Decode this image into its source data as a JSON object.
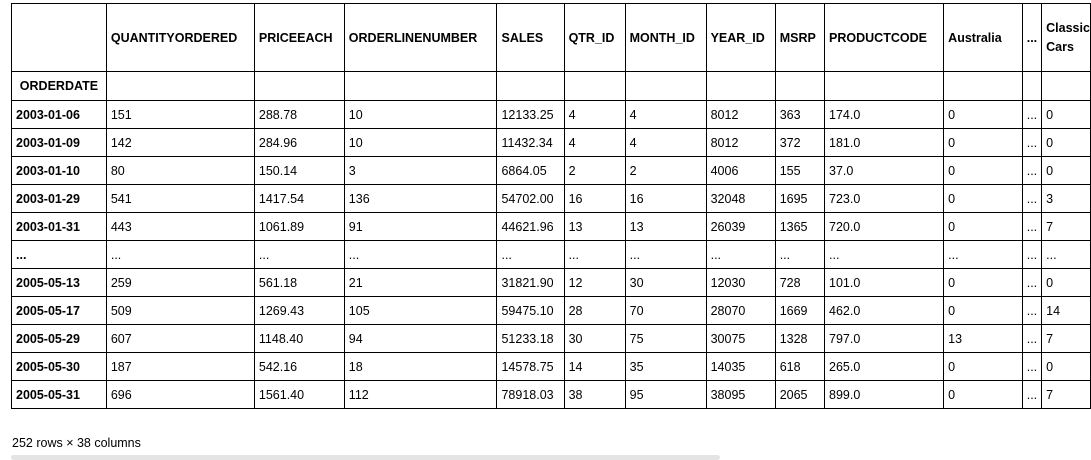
{
  "table": {
    "index_name": "ORDERDATE",
    "columns": [
      "QUANTITYORDERED",
      "PRICEEACH",
      "ORDERLINENUMBER",
      "SALES",
      "QTR_ID",
      "MONTH_ID",
      "YEAR_ID",
      "MSRP",
      "PRODUCTCODE",
      "Australia",
      "...",
      "Classic Cars"
    ],
    "rows": [
      {
        "index": "2003-01-06",
        "cells": [
          "151",
          "288.78",
          "10",
          "12133.25",
          "4",
          "4",
          "8012",
          "363",
          "174.0",
          "0",
          "...",
          "0"
        ]
      },
      {
        "index": "2003-01-09",
        "cells": [
          "142",
          "284.96",
          "10",
          "11432.34",
          "4",
          "4",
          "8012",
          "372",
          "181.0",
          "0",
          "...",
          "0"
        ]
      },
      {
        "index": "2003-01-10",
        "cells": [
          "80",
          "150.14",
          "3",
          "6864.05",
          "2",
          "2",
          "4006",
          "155",
          "37.0",
          "0",
          "...",
          "0"
        ]
      },
      {
        "index": "2003-01-29",
        "cells": [
          "541",
          "1417.54",
          "136",
          "54702.00",
          "16",
          "16",
          "32048",
          "1695",
          "723.0",
          "0",
          "...",
          "3"
        ]
      },
      {
        "index": "2003-01-31",
        "cells": [
          "443",
          "1061.89",
          "91",
          "44621.96",
          "13",
          "13",
          "26039",
          "1365",
          "720.0",
          "0",
          "...",
          "7"
        ]
      },
      {
        "index": "...",
        "cells": [
          "...",
          "...",
          "...",
          "...",
          "...",
          "...",
          "...",
          "...",
          "...",
          "...",
          "...",
          "..."
        ]
      },
      {
        "index": "2005-05-13",
        "cells": [
          "259",
          "561.18",
          "21",
          "31821.90",
          "12",
          "30",
          "12030",
          "728",
          "101.0",
          "0",
          "...",
          "0"
        ]
      },
      {
        "index": "2005-05-17",
        "cells": [
          "509",
          "1269.43",
          "105",
          "59475.10",
          "28",
          "70",
          "28070",
          "1669",
          "462.0",
          "0",
          "...",
          "14"
        ]
      },
      {
        "index": "2005-05-29",
        "cells": [
          "607",
          "1148.40",
          "94",
          "51233.18",
          "30",
          "75",
          "30075",
          "1328",
          "797.0",
          "13",
          "...",
          "7"
        ]
      },
      {
        "index": "2005-05-30",
        "cells": [
          "187",
          "542.16",
          "18",
          "14578.75",
          "14",
          "35",
          "14035",
          "618",
          "265.0",
          "0",
          "...",
          "0"
        ]
      },
      {
        "index": "2005-05-31",
        "cells": [
          "696",
          "1561.40",
          "112",
          "78918.03",
          "38",
          "95",
          "38095",
          "2065",
          "899.0",
          "0",
          "...",
          "7"
        ]
      }
    ]
  },
  "footer": "252 rows × 38 columns"
}
